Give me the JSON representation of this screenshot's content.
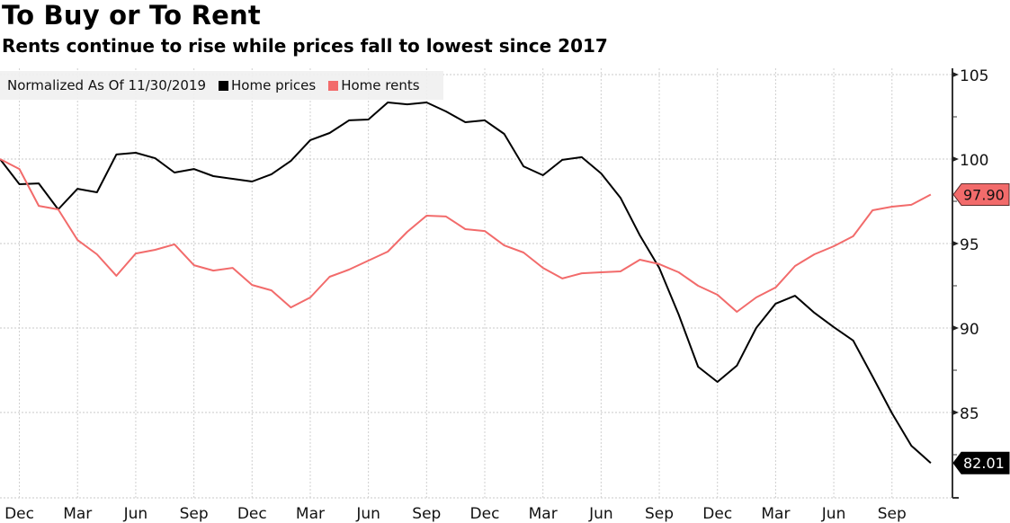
{
  "chart_data": {
    "type": "line",
    "title": "To Buy or To Rent",
    "subtitle": "Rents continue to rise while prices fall to lowest since 2017",
    "legend_note": "Normalized As Of 11/30/2019",
    "legend_position": "top-left",
    "xlabel": "",
    "ylabel": "",
    "x": [
      "Nov 2015",
      "Dec 2015",
      "Jan 2016",
      "Feb 2016",
      "Mar 2016",
      "Apr 2016",
      "May 2016",
      "Jun 2016",
      "Jul 2016",
      "Aug 2016",
      "Sep 2016",
      "Oct 2016",
      "Nov 2016",
      "Dec 2016",
      "Jan 2017",
      "Feb 2017",
      "Mar 2017",
      "Apr 2017",
      "May 2017",
      "Jun 2017",
      "Jul 2017",
      "Aug 2017",
      "Sep 2017",
      "Oct 2017",
      "Nov 2017",
      "Dec 2017",
      "Jan 2018",
      "Feb 2018",
      "Mar 2018",
      "Apr 2018",
      "May 2018",
      "Jun 2018",
      "Jul 2018",
      "Aug 2018",
      "Sep 2018",
      "Oct 2018",
      "Nov 2018",
      "Dec 2018",
      "Jan 2019",
      "Feb 2019",
      "Mar 2019",
      "Apr 2019",
      "May 2019",
      "Jun 2019",
      "Jul 2019",
      "Aug 2019",
      "Sep 2019",
      "Oct 2019",
      "Nov 2019"
    ],
    "x_tick_labels": [
      {
        "label": "Dec",
        "index": 1
      },
      {
        "label": "Mar",
        "index": 4
      },
      {
        "label": "Jun",
        "index": 7
      },
      {
        "label": "Sep",
        "index": 10
      },
      {
        "label": "Dec",
        "index": 13
      },
      {
        "label": "Mar",
        "index": 16
      },
      {
        "label": "Jun",
        "index": 19
      },
      {
        "label": "Sep",
        "index": 22
      },
      {
        "label": "Dec",
        "index": 25
      },
      {
        "label": "Mar",
        "index": 28
      },
      {
        "label": "Jun",
        "index": 31
      },
      {
        "label": "Sep",
        "index": 34
      },
      {
        "label": "Dec",
        "index": 37
      },
      {
        "label": "Mar",
        "index": 40
      },
      {
        "label": "Jun",
        "index": 43
      },
      {
        "label": "Sep",
        "index": 46
      }
    ],
    "y_ticks": [
      85,
      90,
      95,
      100,
      105
    ],
    "ylim": [
      80,
      106.8
    ],
    "y_axis_side": "right",
    "grid": true,
    "series": [
      {
        "name": "Home prices",
        "color": "#000000",
        "last_value_label": "82.01",
        "values": [
          100.0,
          98.51,
          98.56,
          97.02,
          98.24,
          98.03,
          100.27,
          100.37,
          100.05,
          99.2,
          99.41,
          98.99,
          98.83,
          98.67,
          99.1,
          99.89,
          101.12,
          101.54,
          102.29,
          102.34,
          103.35,
          103.24,
          103.35,
          102.82,
          102.18,
          102.29,
          101.49,
          99.57,
          99.04,
          99.95,
          100.11,
          99.15,
          97.71,
          95.48,
          93.56,
          90.8,
          87.71,
          86.81,
          87.77,
          90.0,
          91.44,
          91.91,
          90.9,
          90.05,
          89.26,
          87.13,
          84.95,
          83.03,
          82.01
        ]
      },
      {
        "name": "Home rents",
        "color": "#f26b6b",
        "last_value_label": "97.90",
        "values": [
          100.0,
          99.41,
          97.23,
          97.02,
          95.21,
          94.36,
          93.09,
          94.41,
          94.63,
          94.95,
          93.72,
          93.4,
          93.56,
          92.55,
          92.23,
          91.22,
          91.81,
          93.03,
          93.46,
          93.99,
          94.52,
          95.69,
          96.65,
          96.6,
          95.85,
          95.74,
          94.89,
          94.47,
          93.56,
          92.93,
          93.24,
          93.3,
          93.35,
          94.04,
          93.78,
          93.3,
          92.5,
          91.97,
          90.96,
          91.81,
          92.4,
          93.67,
          94.36,
          94.84,
          95.43,
          96.97,
          97.18,
          97.29,
          97.9
        ]
      }
    ]
  }
}
